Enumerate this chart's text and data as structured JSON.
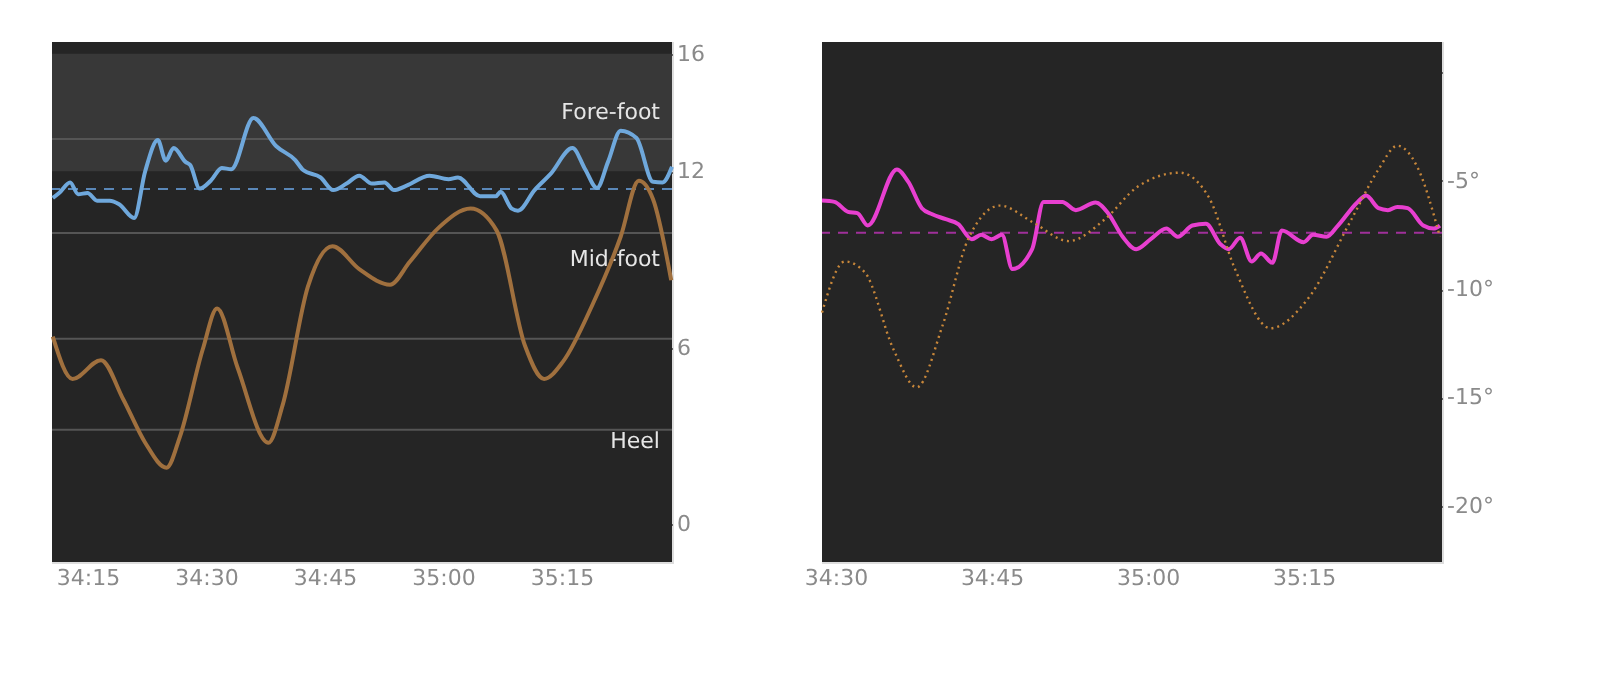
{
  "chart_data": [
    {
      "type": "line",
      "xlim": [
        2050.5,
        2129
      ],
      "ylim": [
        -1.3,
        16.4
      ],
      "xticks": [
        {
          "value": 2055,
          "label": "34:15"
        },
        {
          "value": 2070,
          "label": "34:30"
        },
        {
          "value": 2085,
          "label": "34:45"
        },
        {
          "value": 2100,
          "label": "35:00"
        },
        {
          "value": 2115,
          "label": "35:15"
        }
      ],
      "yticks": [
        0,
        6,
        12,
        16
      ],
      "grid": "y",
      "marker": "none",
      "bands": [
        {
          "axis": "y",
          "from": 12,
          "to": 16,
          "label": "Fore-foot",
          "color": "#383838"
        }
      ],
      "annotations": [
        "Mid-foot",
        "Heel"
      ],
      "ref_lines": [
        {
          "axis": "y",
          "value": 13.1,
          "color": "#555555",
          "line_style": "solid"
        },
        {
          "axis": "y",
          "value": 9.9,
          "color": "#555555",
          "line_style": "solid"
        },
        {
          "axis": "y",
          "value": 6.3,
          "color": "#555555",
          "line_style": "solid"
        },
        {
          "axis": "y",
          "value": 3.2,
          "color": "#555555",
          "line_style": "solid"
        },
        {
          "axis": "y",
          "value": 11.4,
          "color": "#5a87b8",
          "line_style": "dashed"
        }
      ],
      "series": [
        {
          "color": "#6fa8dc",
          "line_style": "solid",
          "x": [
            2050.6,
            2051.4,
            2052.8,
            2053.8,
            2055,
            2056.2,
            2057.8,
            2059.0,
            2060.9,
            2062.3,
            2063.9,
            2064.9,
            2065.9,
            2067.4,
            2068.0,
            2069.2,
            2070.6,
            2072.0,
            2073.2,
            2076.0,
            2078.9,
            2081.3,
            2082.3,
            2084.5,
            2086.1,
            2087.8,
            2089.4,
            2091.0,
            2092.6,
            2093.8,
            2095.4,
            2098.3,
            2100.7,
            2101.9,
            2104.7,
            2106.7,
            2107.3,
            2108.7,
            2109.5,
            2111.6,
            2113.6,
            2116.4,
            2118.0,
            2119.5,
            2120.9,
            2122.5,
            2124.5,
            2126.6,
            2127.8,
            2129.0
          ],
          "values": [
            11.09,
            11.26,
            11.62,
            11.22,
            11.26,
            11.0,
            11.0,
            10.88,
            10.41,
            12.0,
            13.06,
            12.36,
            12.79,
            12.32,
            12.21,
            11.41,
            11.68,
            12.11,
            12.07,
            13.81,
            12.85,
            12.38,
            12.04,
            11.79,
            11.36,
            11.58,
            11.85,
            11.58,
            11.62,
            11.36,
            11.51,
            11.85,
            11.73,
            11.79,
            11.15,
            11.15,
            11.3,
            10.73,
            10.66,
            11.36,
            11.9,
            12.79,
            12.07,
            11.43,
            12.32,
            13.38,
            13.13,
            11.64,
            11.62,
            12.15
          ]
        },
        {
          "color": "#a0703e",
          "line_style": "solid",
          "x": [
            2050.6,
            2053.1,
            2056.7,
            2059.5,
            2062.3,
            2065.0,
            2066.7,
            2069.6,
            2071.4,
            2074.0,
            2077.9,
            2079.7,
            2082.9,
            2086.0,
            2089.4,
            2093.3,
            2095.8,
            2099.5,
            2103.5,
            2106.8,
            2110.4,
            2112.8,
            2115.2,
            2118.9,
            2122.5,
            2124.8,
            2126.6,
            2128.9
          ],
          "values": [
            6.37,
            4.93,
            5.57,
            4.25,
            2.76,
            1.91,
            2.97,
            5.95,
            7.33,
            5.31,
            2.76,
            4.04,
            8.07,
            9.45,
            8.67,
            8.14,
            8.92,
            10.09,
            10.73,
            9.98,
            6.05,
            4.93,
            5.52,
            7.44,
            9.77,
            11.68,
            11.05,
            8.29
          ]
        }
      ]
    },
    {
      "type": "line",
      "xlim": [
        2068.7,
        2128.3
      ],
      "ylim": [
        -22.6,
        1.4
      ],
      "xticks": [
        {
          "value": 2070,
          "label": "34:30"
        },
        {
          "value": 2085,
          "label": "34:45"
        },
        {
          "value": 2100,
          "label": "35:00"
        },
        {
          "value": 2115,
          "label": "35:15"
        }
      ],
      "yticks": [
        {
          "value": 0,
          "label": null
        },
        {
          "value": -5,
          "label": "-5°"
        },
        {
          "value": -10,
          "label": "-10°"
        },
        {
          "value": -15,
          "label": "-15°"
        },
        {
          "value": -20,
          "label": "-20°"
        }
      ],
      "grid": "y",
      "marker": "none",
      "ref_lines": [
        {
          "axis": "y",
          "value": -7.4,
          "color": "#a0309a",
          "line_style": "dashed"
        }
      ],
      "series": [
        {
          "color": "#e83fd0",
          "line_style": "solid",
          "x": [
            2068.7,
            2069.9,
            2071.2,
            2072.1,
            2073.1,
            2075.9,
            2077.0,
            2078.3,
            2079.3,
            2080.6,
            2081.8,
            2083.1,
            2084.0,
            2085.0,
            2086.0,
            2087.0,
            2088.9,
            2090.0,
            2091.8,
            2093.1,
            2095.0,
            2096.2,
            2097.6,
            2098.9,
            2100.3,
            2101.8,
            2102.9,
            2104.3,
            2105.6,
            2107.0,
            2107.8,
            2108.9,
            2110.0,
            2110.9,
            2112.0,
            2112.9,
            2115.0,
            2115.9,
            2117.2,
            2118.3,
            2120.2,
            2121.0,
            2122.2,
            2123.1,
            2124.0,
            2125.0,
            2126.5,
            2127.5,
            2128.1
          ],
          "values": [
            -5.92,
            -5.98,
            -6.44,
            -6.5,
            -7.07,
            -4.48,
            -5.06,
            -6.27,
            -6.55,
            -6.78,
            -7.01,
            -7.7,
            -7.5,
            -7.7,
            -7.5,
            -9.08,
            -8.16,
            -5.98,
            -5.98,
            -6.36,
            -6.01,
            -6.5,
            -7.59,
            -8.16,
            -7.7,
            -7.21,
            -7.59,
            -7.07,
            -6.99,
            -7.93,
            -8.16,
            -7.64,
            -8.73,
            -8.36,
            -8.79,
            -7.3,
            -7.84,
            -7.5,
            -7.59,
            -7.07,
            -5.98,
            -5.69,
            -6.27,
            -6.36,
            -6.21,
            -6.27,
            -7.07,
            -7.21,
            -7.07
          ]
        },
        {
          "color": "#c8873a",
          "line_style": "dotted",
          "x": [
            2068.7,
            2070.9,
            2072.8,
            2075.6,
            2077.8,
            2080.3,
            2082.8,
            2085.8,
            2089.0,
            2092.4,
            2095.9,
            2099.0,
            2103.1,
            2105.9,
            2108.4,
            2111.8,
            2115.3,
            2119.6,
            2122.2,
            2124.0,
            2125.9,
            2128.1
          ],
          "values": [
            -11.09,
            -8.73,
            -9.22,
            -12.82,
            -14.54,
            -11.67,
            -7.64,
            -6.15,
            -6.93,
            -7.79,
            -6.78,
            -5.29,
            -4.63,
            -5.78,
            -9.08,
            -11.81,
            -10.52,
            -6.78,
            -4.48,
            -3.39,
            -4.34,
            -7.59
          ]
        }
      ]
    }
  ]
}
